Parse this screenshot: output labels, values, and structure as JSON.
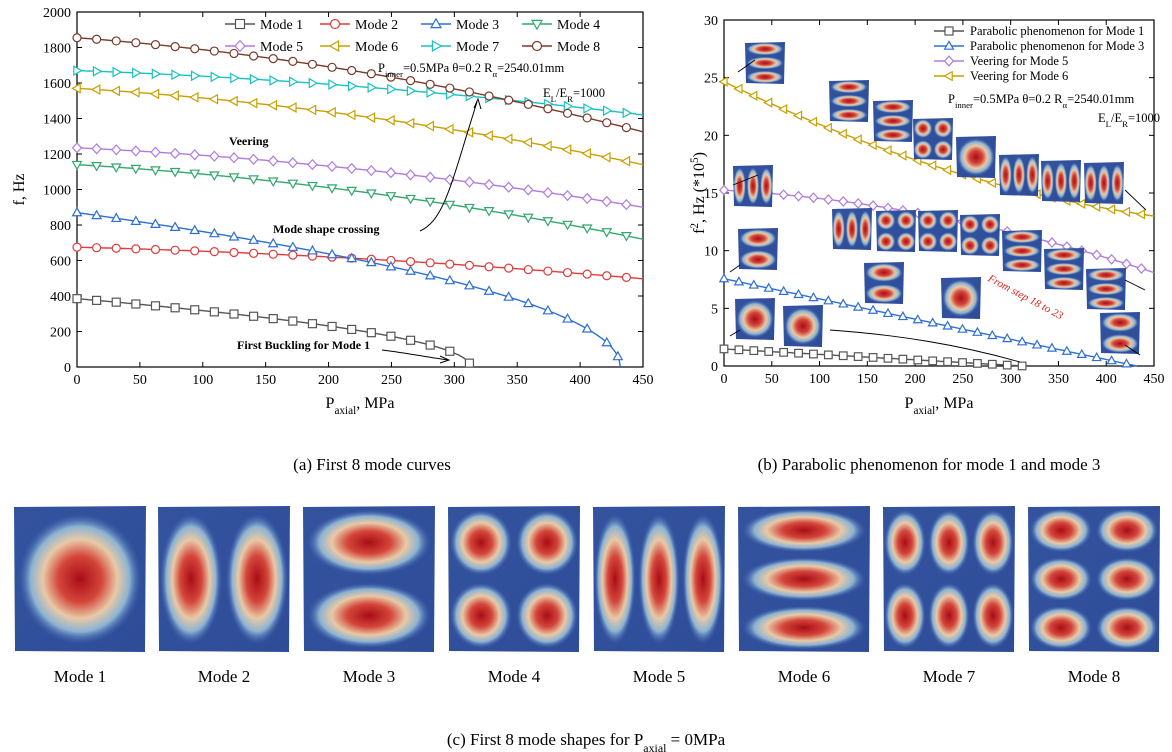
{
  "chart_data": [
    {
      "type": "line",
      "caption": "(a)  First 8 mode curves",
      "xlabel_main": "P",
      "xlabel_sub": "axial",
      "xlabel_tail": ", MPa",
      "ylabel": "f, Hz",
      "xlim": [
        0,
        450
      ],
      "ylim": [
        0,
        2000
      ],
      "xticks": [
        0,
        50,
        100,
        150,
        200,
        250,
        300,
        350,
        400,
        450
      ],
      "yticks": [
        0,
        200,
        400,
        600,
        800,
        1000,
        1200,
        1400,
        1600,
        1800,
        2000
      ],
      "series": [
        {
          "name": "Mode 1",
          "color": "#555555",
          "marker": "square",
          "f0": 385,
          "pcr": 313
        },
        {
          "name": "Mode 2",
          "color": "#e03c3c",
          "marker": "circle",
          "f0": 675,
          "f450": 497
        },
        {
          "name": "Mode 3",
          "color": "#2e6fd6",
          "marker": "triangle-up",
          "f0": 870,
          "pcr": 432
        },
        {
          "name": "Mode 4",
          "color": "#33a86e",
          "marker": "triangle-down",
          "f0": 1140,
          "f450": 720
        },
        {
          "name": "Mode 5",
          "color": "#b07be0",
          "marker": "diamond",
          "f0": 1235,
          "f450": 900
        },
        {
          "name": "Mode 6",
          "color": "#c9a000",
          "marker": "triangle-left",
          "f0": 1570,
          "f450": 1140
        },
        {
          "name": "Mode 7",
          "color": "#19c2c2",
          "marker": "triangle-right",
          "f0": 1670,
          "f450": 1420
        },
        {
          "name": "Mode 8",
          "color": "#7a3a2a",
          "marker": "circle",
          "f0": 1855,
          "f450": 1325
        }
      ],
      "params": {
        "p_inner_main": "P",
        "p_inner_sub": "inner",
        "p_inner_tail": "=0.5MPa  θ=0.2  R",
        "r_sub": "α",
        "r_tail": "=2540.01mm",
        "e_ratio_main": "E",
        "e_ratio_sub1": "L",
        "e_ratio_mid": "/E",
        "e_ratio_sub2": "R",
        "e_ratio_tail": "=1000"
      },
      "annotations": {
        "veering": "Veering",
        "crossing": "Mode shape crossing",
        "buckling": "First Buckling for Mode 1"
      }
    },
    {
      "type": "line",
      "caption": "(b)  Parabolic phenomenon for mode 1 and mode 3",
      "xlabel_main": "P",
      "xlabel_sub": "axial",
      "xlabel_tail": ", MPa",
      "ylabel_main": "f",
      "ylabel_sup": "2",
      "ylabel_mid": ", Hz (*10",
      "ylabel_sup2": "5",
      "ylabel_tail": ")",
      "xlim": [
        0,
        450
      ],
      "ylim": [
        0,
        30
      ],
      "xticks": [
        0,
        50,
        100,
        150,
        200,
        250,
        300,
        350,
        400,
        450
      ],
      "yticks": [
        0,
        5,
        10,
        15,
        20,
        25,
        30
      ],
      "series": [
        {
          "name": "Parabolic phenomenon for Mode 1",
          "color": "#555555",
          "marker": "square",
          "y0": 1.48,
          "pcr": 313
        },
        {
          "name": "Parabolic phenomenon for Mode 3",
          "color": "#2e6fd6",
          "marker": "triangle-up",
          "y0": 7.57,
          "pcr": 432
        },
        {
          "name": "Veering for Mode 5",
          "color": "#b07be0",
          "marker": "diamond",
          "y0": 15.25,
          "y450": 8.1
        },
        {
          "name": "Veering for Mode 6",
          "color": "#c9a000",
          "marker": "triangle-left",
          "y0": 24.65,
          "y450": 13.0
        }
      ],
      "params": {
        "p_inner_main": "P",
        "p_inner_sub": "inner",
        "p_inner_tail": "=0.5MPa  θ=0.2  R",
        "r_sub": "α",
        "r_tail": "=2540.01mm",
        "e_ratio_main": "E",
        "e_ratio_sub1": "L",
        "e_ratio_mid": "/E",
        "e_ratio_sub2": "R",
        "e_ratio_tail": "=1000"
      },
      "annotations": {
        "steps": "From step 18 to 23"
      }
    }
  ],
  "mode_shapes": {
    "caption_main": "(c)  First 8 mode shapes for P",
    "caption_sub": "axial",
    "caption_tail": " = 0MPa",
    "panels": [
      {
        "label": "Mode 1",
        "pattern": "1x1"
      },
      {
        "label": "Mode 2",
        "pattern": "2x1"
      },
      {
        "label": "Mode 3",
        "pattern": "1x2"
      },
      {
        "label": "Mode 4",
        "pattern": "2x2"
      },
      {
        "label": "Mode 5",
        "pattern": "3x1"
      },
      {
        "label": "Mode 6",
        "pattern": "1x3"
      },
      {
        "label": "Mode 7",
        "pattern": "3x2"
      },
      {
        "label": "Mode 8",
        "pattern": "2x3"
      }
    ]
  }
}
